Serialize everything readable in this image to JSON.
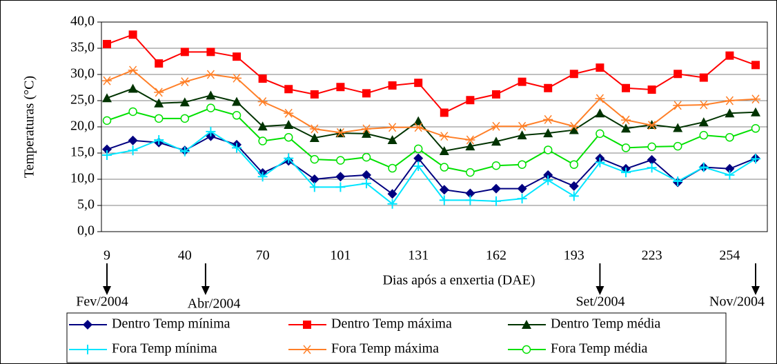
{
  "chart_data": {
    "type": "line",
    "x_label": "Dias após a enxertia (DAE)",
    "y_label": "Temperaturas (°C)",
    "categories": [
      "9",
      null,
      null,
      "40",
      null,
      null,
      "70",
      null,
      null,
      "101",
      null,
      null,
      "131",
      null,
      null,
      "162",
      null,
      null,
      "193",
      null,
      null,
      "223",
      null,
      null,
      "254",
      null
    ],
    "series": [
      {
        "name": "Dentro Temp mínima",
        "color": "#000080",
        "marker": "diamond",
        "values": [
          15.7,
          17.4,
          17.0,
          15.5,
          18.2,
          16.6,
          11.2,
          13.5,
          10.0,
          10.5,
          10.8,
          7.2,
          14.0,
          8.0,
          7.3,
          8.2,
          8.2,
          10.8,
          8.7,
          14.0,
          12.0,
          13.7,
          9.4,
          12.3,
          12.0,
          14.0
        ]
      },
      {
        "name": "Dentro Temp máxima",
        "color": "#ff0000",
        "marker": "square",
        "values": [
          35.8,
          37.6,
          32.1,
          34.3,
          34.3,
          33.4,
          29.2,
          27.2,
          26.2,
          27.6,
          26.4,
          27.9,
          28.4,
          22.7,
          25.1,
          26.2,
          28.6,
          27.4,
          30.1,
          31.3,
          27.4,
          27.1,
          30.1,
          29.4,
          33.6,
          31.8
        ]
      },
      {
        "name": "Dentro Temp média",
        "color": "#003300",
        "marker": "triangle",
        "values": [
          25.5,
          27.3,
          24.5,
          24.7,
          26.0,
          24.8,
          20.1,
          20.4,
          17.9,
          18.8,
          18.7,
          17.5,
          21.1,
          15.4,
          16.3,
          17.2,
          18.4,
          18.8,
          19.4,
          22.6,
          19.7,
          20.4,
          19.8,
          20.9,
          22.6,
          22.8
        ]
      },
      {
        "name": "Fora Temp mínima",
        "color": "#00e5ff",
        "marker": "plus",
        "values": [
          14.6,
          15.5,
          17.5,
          15.3,
          19.1,
          16.0,
          10.5,
          14.0,
          8.5,
          8.5,
          9.2,
          5.3,
          12.5,
          6.0,
          6.0,
          5.8,
          6.3,
          9.8,
          6.8,
          13.2,
          11.3,
          12.2,
          9.6,
          12.3,
          10.8,
          13.9
        ]
      },
      {
        "name": "Fora Temp máxima",
        "color": "#ff7f27",
        "marker": "star",
        "values": [
          28.8,
          30.8,
          26.6,
          28.6,
          30.0,
          29.3,
          24.8,
          22.6,
          19.6,
          18.9,
          19.6,
          19.9,
          19.9,
          18.2,
          17.5,
          20.1,
          20.1,
          21.4,
          20.1,
          25.4,
          21.3,
          20.3,
          24.1,
          24.2,
          25.0,
          25.3
        ]
      },
      {
        "name": "Fora Temp média",
        "color": "#00e000",
        "marker": "circle",
        "values": [
          21.2,
          22.9,
          21.6,
          21.6,
          23.6,
          22.2,
          17.3,
          18.0,
          13.8,
          13.6,
          14.2,
          12.1,
          15.8,
          12.3,
          11.3,
          12.6,
          12.8,
          15.6,
          12.8,
          18.7,
          16.0,
          16.2,
          16.3,
          18.4,
          18.0,
          19.7
        ]
      }
    ],
    "ylim": [
      0,
      40
    ],
    "yticks": [
      {
        "value": 0,
        "label": "0,0"
      },
      {
        "value": 5,
        "label": "5,0"
      },
      {
        "value": 10,
        "label": "10,0"
      },
      {
        "value": 15,
        "label": "15,0"
      },
      {
        "value": 20,
        "label": "20,0"
      },
      {
        "value": 25,
        "label": "25,0"
      },
      {
        "value": 30,
        "label": "30,0"
      },
      {
        "value": 35,
        "label": "35,0"
      },
      {
        "value": 40,
        "label": "40,0"
      }
    ],
    "grid": true,
    "annotations": [
      "Fev/2004",
      "Abr/2004",
      "Set/2004",
      "Nov/2004"
    ]
  }
}
